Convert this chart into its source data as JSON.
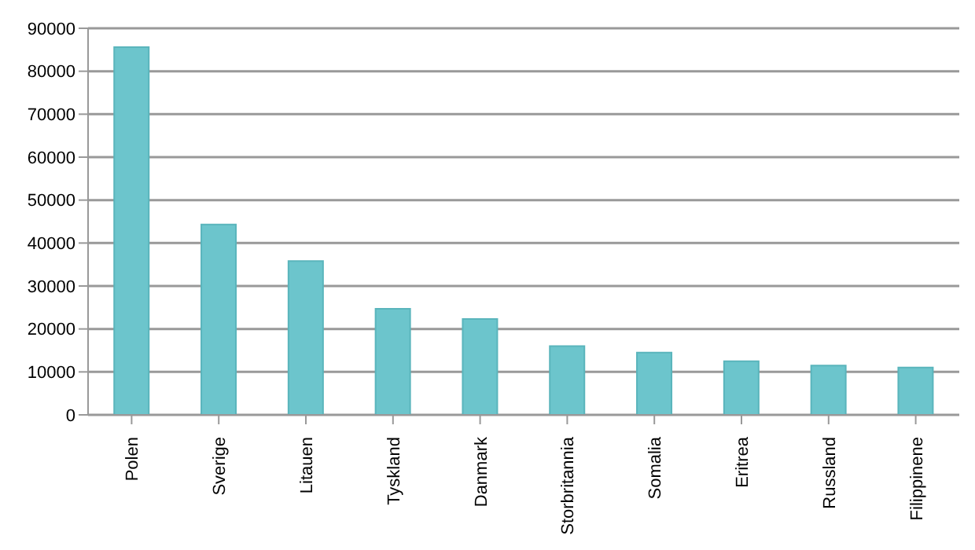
{
  "chart_data": {
    "type": "bar",
    "categories": [
      "Polen",
      "Sverige",
      "Litauen",
      "Tyskland",
      "Danmark",
      "Storbritannia",
      "Somalia",
      "Eritrea",
      "Russland",
      "Filippinene"
    ],
    "values": [
      85600,
      44300,
      35800,
      24700,
      22300,
      16000,
      14500,
      12500,
      11500,
      11000
    ],
    "color": "#6cc5cc",
    "ylim": [
      0,
      90000
    ],
    "yticks": [
      0,
      10000,
      20000,
      30000,
      40000,
      50000,
      60000,
      70000,
      80000,
      90000
    ],
    "grid": "y",
    "legend": false
  }
}
